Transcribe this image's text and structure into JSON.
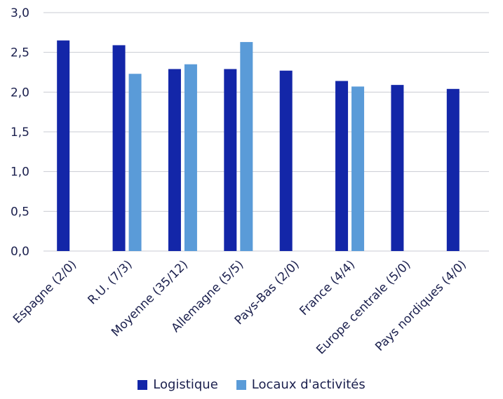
{
  "chart_data": {
    "type": "bar",
    "categories": [
      "Espagne (2/0)",
      "R.U. (7/3)",
      "Moyenne (35/12)",
      "Allemagne (5/5)",
      "Pays-Bas (2/0)",
      "France (4/4)",
      "Europe centrale (5/0)",
      "Pays nordiques (4/0)"
    ],
    "series": [
      {
        "name": "Logistique",
        "color": "#1326a8",
        "values": [
          2.65,
          2.59,
          2.29,
          2.29,
          2.27,
          2.14,
          2.09,
          2.04
        ]
      },
      {
        "name": "Locaux d'activités",
        "color": "#5a9bd8",
        "values": [
          null,
          2.23,
          2.35,
          2.63,
          null,
          2.07,
          null,
          null
        ]
      }
    ],
    "ylim": [
      0,
      3.0
    ],
    "yticks": [
      "0,0",
      "0,5",
      "1,0",
      "1,5",
      "2,0",
      "2,5",
      "3,0"
    ],
    "grid": true,
    "legend_position": "bottom-center"
  }
}
